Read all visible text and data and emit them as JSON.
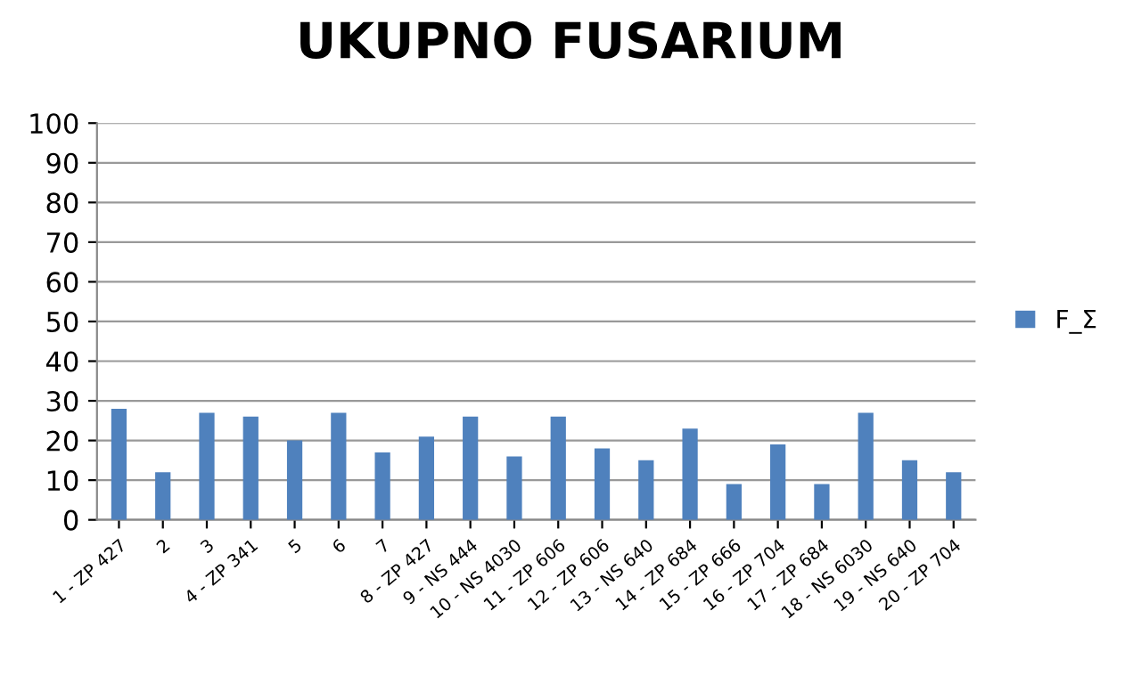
{
  "chart_data": {
    "type": "bar",
    "title": "UKUPNO FUSARIUM",
    "categories": [
      "1 - ZP 427",
      "2",
      "3",
      "4 - ZP 341",
      "5",
      "6",
      "7",
      "8 - ZP 427",
      "9 - NS 444",
      "10 - NS 4030",
      "11 - ZP 606",
      "12 - ZP 606",
      "13 - NS 640",
      "14 - ZP 684",
      "15 - ZP 666",
      "16 - ZP 704",
      "17 - ZP 684",
      "18 - NS 6030",
      "19 - NS 640",
      "20 - ZP 704"
    ],
    "series": [
      {
        "name": "F_Σ",
        "color": "#4f81bd",
        "values": [
          28,
          12,
          27,
          26,
          20,
          27,
          17,
          21,
          26,
          16,
          26,
          18,
          15,
          23,
          9,
          19,
          9,
          27,
          15,
          12
        ]
      }
    ],
    "ylim": [
      0,
      100
    ],
    "yticks": [
      0,
      10,
      20,
      30,
      40,
      50,
      60,
      70,
      80,
      90,
      100
    ],
    "grid": "y",
    "legend": "right"
  }
}
